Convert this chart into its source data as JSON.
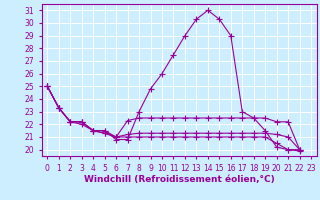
{
  "background_color": "#cceeff",
  "grid_color": "#ffffff",
  "line_color": "#990099",
  "xlim": [
    -0.5,
    23.5
  ],
  "ylim": [
    19.5,
    31.5
  ],
  "xticks": [
    0,
    1,
    2,
    3,
    4,
    5,
    6,
    7,
    8,
    9,
    10,
    11,
    12,
    13,
    14,
    15,
    16,
    17,
    18,
    19,
    20,
    21,
    22,
    23
  ],
  "yticks": [
    20,
    21,
    22,
    23,
    24,
    25,
    26,
    27,
    28,
    29,
    30,
    31
  ],
  "series": [
    [
      25.0,
      23.3,
      22.2,
      22.2,
      21.5,
      21.5,
      20.8,
      20.8,
      23.0,
      24.8,
      26.0,
      27.5,
      29.0,
      30.3,
      31.0,
      30.3,
      29.0,
      23.0,
      22.5,
      21.5,
      20.2,
      20.0,
      20.0
    ],
    [
      25.0,
      23.3,
      22.2,
      22.2,
      21.5,
      21.5,
      21.0,
      22.3,
      22.5,
      22.5,
      22.5,
      22.5,
      22.5,
      22.5,
      22.5,
      22.5,
      22.5,
      22.5,
      22.5,
      22.5,
      22.2,
      22.2,
      20.0
    ],
    [
      25.0,
      23.3,
      22.2,
      22.2,
      21.5,
      21.3,
      21.0,
      21.2,
      21.3,
      21.3,
      21.3,
      21.3,
      21.3,
      21.3,
      21.3,
      21.3,
      21.3,
      21.3,
      21.3,
      21.3,
      21.2,
      21.0,
      20.0
    ],
    [
      25.0,
      23.3,
      22.2,
      22.0,
      21.5,
      21.3,
      21.0,
      21.0,
      21.0,
      21.0,
      21.0,
      21.0,
      21.0,
      21.0,
      21.0,
      21.0,
      21.0,
      21.0,
      21.0,
      21.0,
      20.5,
      20.0,
      19.9
    ]
  ],
  "xlabel": "Windchill (Refroidissement éolien,°C)",
  "xlabel_fontsize": 6.5,
  "tick_fontsize": 5.5
}
